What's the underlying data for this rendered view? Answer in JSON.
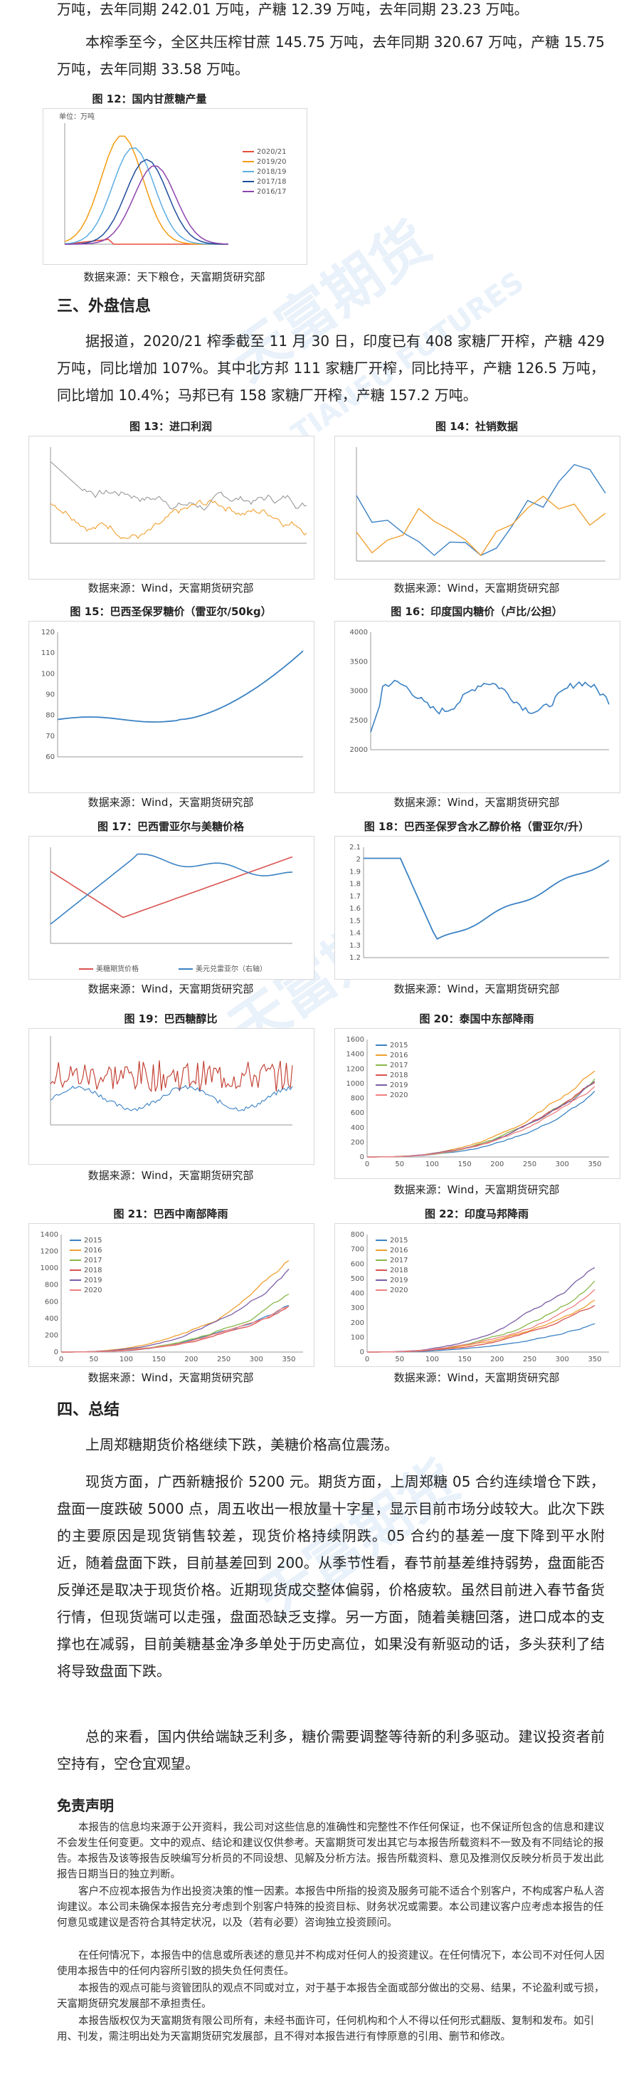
{
  "top_text": {
    "line1": "万吨，去年同期 242.01 万吨，产糖 12.39 万吨，去年同期 23.23 万吨。",
    "para2": "本榨季至今，全区共压榨甘蔗 145.75 万吨，去年同期 320.67 万吨，产糖 15.75 万吨，去年同期 33.58 万吨。"
  },
  "fig12": {
    "caption": "图 12：国内甘蔗糖产量",
    "unit": "单位：万吨",
    "source": "数据来源：天下粮仓，天富期货研究部",
    "legend": [
      "2020/21",
      "2019/20",
      "2018/19",
      "2017/18",
      "2016/17"
    ],
    "colors": [
      "#e74c3c",
      "#f39c12",
      "#5dade2",
      "#1f4e9c",
      "#8e44ad"
    ]
  },
  "section3": {
    "title": "三、外盘信息",
    "para": "据报道，2020/21 榨季截至 11 月 30 日，印度已有 408 家糖厂开榨，产糖 429 万吨，同比增加 107%。其中北方邦 111 家糖厂开榨，同比持平，产糖 126.5 万吨，同比增加 10.4%；马邦已有 158 家糖厂开榨，产糖 157.2 万吨。"
  },
  "charts": {
    "f13": {
      "caption": "图 13：进口利润",
      "source": "数据来源：Wind，天富期货研究部"
    },
    "f14": {
      "caption": "图 14：社销数据",
      "source": "数据来源：Wind，天富期货研究部"
    },
    "f15": {
      "caption": "图 15：巴西圣保罗糖价（雷亚尔/50kg）",
      "source": "数据来源：Wind，天富期货研究部",
      "yticks": [
        "120",
        "110",
        "100",
        "90",
        "80",
        "70",
        "60"
      ]
    },
    "f16": {
      "caption": "图 16：印度国内糖价（卢比/公担）",
      "source": "数据来源：Wind，天富期货研究部",
      "yticks": [
        "4000",
        "3500",
        "3000",
        "2500",
        "2000"
      ]
    },
    "f17": {
      "caption": "图 17：巴西雷亚尔与美糖价格",
      "source": "数据来源：Wind，天富期货研究部",
      "legend": [
        "美糖期货价格",
        "美元兑雷亚尔（右轴）"
      ]
    },
    "f18": {
      "caption": "图 18：巴西圣保罗含水乙醇价格（雷亚尔/升）",
      "source": "数据来源：Wind，天富期货研究部",
      "yticks": [
        "2.1",
        "2",
        "1.9",
        "1.8",
        "1.7",
        "1.6",
        "1.5",
        "1.4",
        "1.3",
        "1.2"
      ]
    },
    "f19": {
      "caption": "图 19：巴西糖醇比",
      "source": "数据来源：Wind，天富期货研究部"
    },
    "f20": {
      "caption": "图 20：泰国中东部降雨",
      "source": "数据来源：Wind，天富期货研究部",
      "legend": [
        "2015",
        "2016",
        "2017",
        "2018",
        "2019",
        "2020"
      ],
      "yticks": [
        "1600",
        "1400",
        "1200",
        "1000",
        "800",
        "600",
        "400",
        "200",
        "0"
      ],
      "xticks": [
        "0",
        "50",
        "100",
        "150",
        "200",
        "250",
        "300",
        "350"
      ]
    },
    "f21": {
      "caption": "图 21：巴西中南部降雨",
      "source": "数据来源：Wind，天富期货研究部",
      "legend": [
        "2015",
        "2016",
        "2017",
        "2018",
        "2019",
        "2020"
      ],
      "yticks": [
        "1400",
        "1200",
        "1000",
        "800",
        "600",
        "400",
        "200",
        "0"
      ],
      "xticks": [
        "0",
        "50",
        "100",
        "150",
        "200",
        "250",
        "300",
        "350"
      ]
    },
    "f22": {
      "caption": "图 22：印度马邦降雨",
      "source": "数据来源：Wind，天富期货研究部",
      "legend": [
        "2015",
        "2016",
        "2017",
        "2018",
        "2019",
        "2020"
      ],
      "yticks": [
        "800",
        "700",
        "600",
        "500",
        "400",
        "300",
        "200",
        "100",
        "0"
      ],
      "xticks": [
        "0",
        "50",
        "100",
        "150",
        "200",
        "250",
        "300",
        "350"
      ]
    }
  },
  "series_colors": [
    "#3b82c4",
    "#f0a030",
    "#8ab84a",
    "#d9534f",
    "#7b5ea7",
    "#f08080"
  ],
  "section4": {
    "title": "四、总结",
    "p1": "上周郑糖期货价格继续下跌，美糖价格高位震荡。",
    "p2": "现货方面，广西新糖报价 5200 元。期货方面，上周郑糖 05 合约连续增仓下跌，盘面一度跌破 5000 点，周五收出一根放量十字星，显示目前市场分歧较大。此次下跌的主要原因是现货销售较差，现货价格持续阴跌。05 合约的基差一度下降到平水附近，随着盘面下跌，目前基差回到 200。从季节性看，春节前基差维持弱势，盘面能否反弹还是取决于现货价格。近期现货成交整体偏弱，价格疲软。虽然目前进入春节备货行情，但现货端可以走强，盘面恐缺乏支撑。另一方面，随着美糖回落，进口成本的支撑也在减弱，目前美糖基金净多单处于历史高位，如果没有新驱动的话，多头获利了结将导致盘面下跌。",
    "p3": "总的来看，国内供给端缺乏利多，糖价需要调整等待新的利多驱动。建议投资者前空持有，空仓宜观望。"
  },
  "disclaimer": {
    "title": "免责声明",
    "p1": "本报告的信息均来源于公开资料，我公司对这些信息的准确性和完整性不作任何保证，也不保证所包含的信息和建议不会发生任何变更。文中的观点、结论和建议仅供参考。天富期货可发出其它与本报告所载资料不一致及有不同结论的报告。本报告及该等报告反映编写分析员的不同设想、见解及分析方法。报告所载资料、意见及推测仅反映分析员于发出此报告日期当日的独立判断。",
    "p2": "客户不应视本报告为作出投资决策的惟一因素。本报告中所指的投资及服务可能不适合个别客户，不构成客户私人咨询建议。本公司未确保本报告充分考虑到个别客户特殊的投资目标、财务状况或需要。本公司建议客户应考虑本报告的任何意见或建议是否符合其特定状况，以及（若有必要）咨询独立投资顾问。",
    "p3": "在任何情况下，本报告中的信息或所表述的意见并不构成对任何人的投资建议。在任何情况下，本公司不对任何人因使用本报告中的任何内容所引致的损失负任何责任。",
    "p4": "本报告的观点可能与资管团队的观点不同或对立，对于基于本报告全面或部分做出的交易、结果，不论盈利或亏损，天富期货研究发展部不承担责任。",
    "p5": "本报告版权仅为天富期货有限公司所有，未经书面许可，任何机构和个人不得以任何形式翻版、复制和发布。如引用、刊发，需注明出处为天富期货研究发展部，且不得对本报告进行有悖原意的引用、删节和修改。"
  },
  "watermark": {
    "logo": "天富期货",
    "en": "TIANFU FUTURES"
  }
}
